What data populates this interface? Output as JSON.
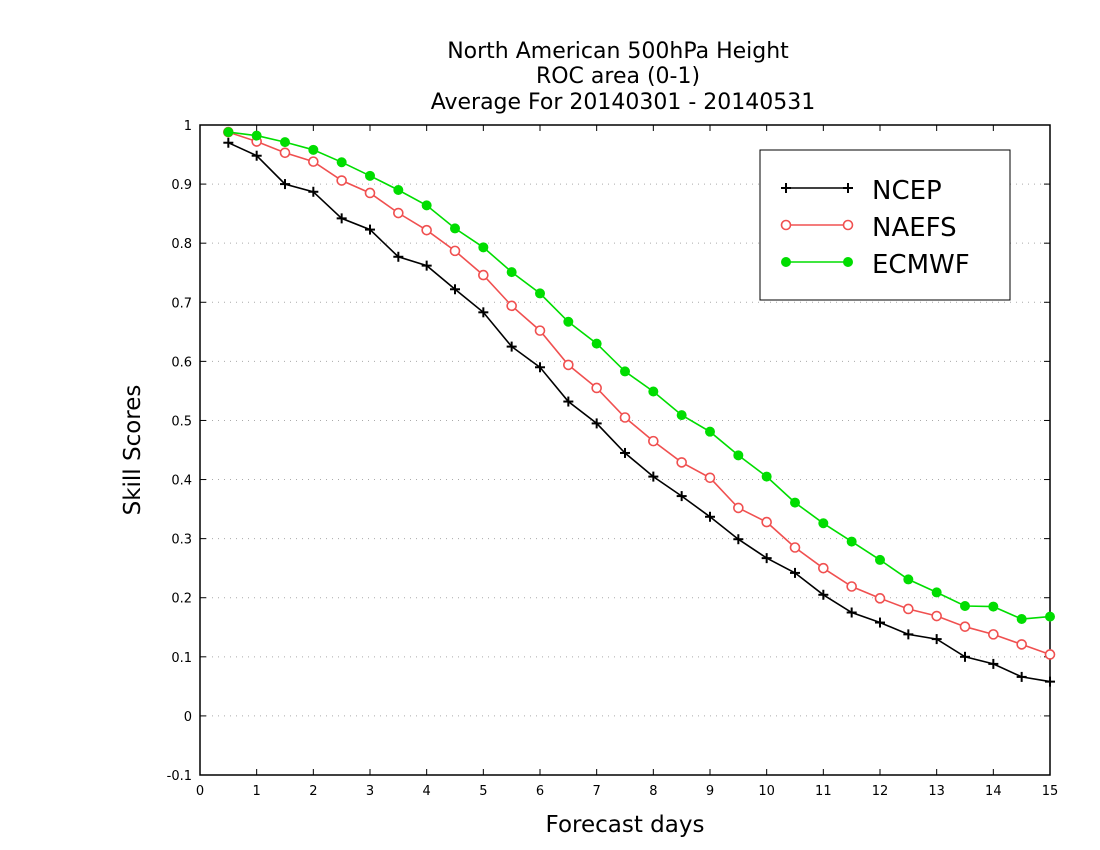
{
  "chart_data": {
    "type": "line",
    "title": [
      "North American 500hPa Height",
      "ROC area (0-1)",
      "Average For 20140301 - 20140531"
    ],
    "xlabel": "Forecast days",
    "ylabel": "Skill Scores",
    "xlim": [
      0,
      15
    ],
    "ylim": [
      -0.1,
      1
    ],
    "xticks": [
      "0",
      "1",
      "2",
      "3",
      "4",
      "5",
      "6",
      "7",
      "8",
      "9",
      "10",
      "11",
      "12",
      "13",
      "14",
      "15"
    ],
    "yticks": [
      "-0.1",
      "0",
      "0.1",
      "0.2",
      "0.3",
      "0.4",
      "0.5",
      "0.6",
      "0.7",
      "0.8",
      "0.9",
      "1"
    ],
    "grid": "horizontal dotted",
    "legend_position": "top-right",
    "x": [
      0.5,
      1,
      1.5,
      2,
      2.5,
      3,
      3.5,
      4,
      4.5,
      5,
      5.5,
      6,
      6.5,
      7,
      7.5,
      8,
      8.5,
      9,
      9.5,
      10,
      10.5,
      11,
      11.5,
      12,
      12.5,
      13,
      13.5,
      14,
      14.5,
      15
    ],
    "series": [
      {
        "name": "NCEP",
        "color": "#000000",
        "marker": "plus",
        "values": [
          0.97,
          0.948,
          0.9,
          0.887,
          0.842,
          0.823,
          0.777,
          0.762,
          0.722,
          0.683,
          0.625,
          0.59,
          0.532,
          0.495,
          0.445,
          0.405,
          0.372,
          0.337,
          0.299,
          0.267,
          0.242,
          0.205,
          0.175,
          0.158,
          0.138,
          0.13,
          0.1,
          0.088,
          0.066,
          0.058
        ]
      },
      {
        "name": "NAEFS",
        "color": "#f05050",
        "marker": "open-circle",
        "values": [
          0.988,
          0.972,
          0.953,
          0.938,
          0.906,
          0.885,
          0.851,
          0.822,
          0.787,
          0.746,
          0.694,
          0.652,
          0.594,
          0.555,
          0.505,
          0.465,
          0.429,
          0.403,
          0.352,
          0.328,
          0.285,
          0.25,
          0.219,
          0.199,
          0.181,
          0.169,
          0.151,
          0.138,
          0.121,
          0.104
        ]
      },
      {
        "name": "ECMWF",
        "color": "#00dd00",
        "marker": "filled-circle",
        "values": [
          0.988,
          0.982,
          0.971,
          0.958,
          0.937,
          0.914,
          0.89,
          0.864,
          0.825,
          0.793,
          0.751,
          0.715,
          0.667,
          0.63,
          0.583,
          0.549,
          0.509,
          0.481,
          0.441,
          0.405,
          0.361,
          0.326,
          0.295,
          0.264,
          0.231,
          0.209,
          0.186,
          0.185,
          0.164,
          0.168
        ]
      }
    ]
  }
}
